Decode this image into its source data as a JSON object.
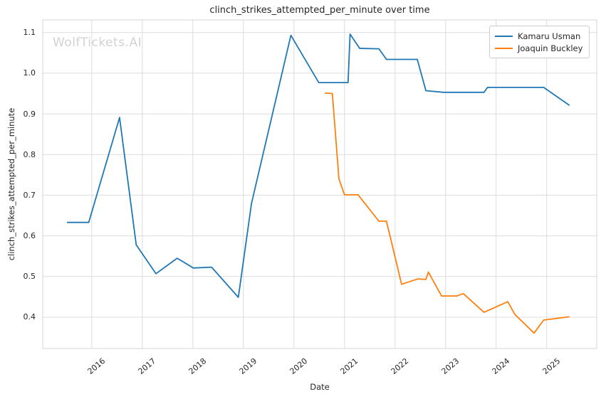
{
  "watermark": "WolfTickets.AI",
  "chart_data": {
    "type": "line",
    "title": "clinch_strikes_attempted_per_minute over time",
    "xlabel": "Date",
    "ylabel": "clinch_strikes_attempted_per_minute",
    "xlim": [
      2015.03,
      2025.99
    ],
    "ylim": [
      0.323,
      1.131
    ],
    "xticks": [
      2016,
      2017,
      2018,
      2019,
      2020,
      2021,
      2022,
      2023,
      2024,
      2025
    ],
    "yticks": [
      0.4,
      0.5,
      0.6,
      0.7,
      0.8,
      0.9,
      1.0,
      1.1
    ],
    "grid": true,
    "grid_color": "#dcdcdc",
    "border_color": "#d4d4d4",
    "legend_position": "upper right",
    "series": [
      {
        "name": "Kamaru Usman",
        "color": "#1f77b4",
        "points": [
          [
            2015.51,
            0.633
          ],
          [
            2015.94,
            0.633
          ],
          [
            2016.55,
            0.891
          ],
          [
            2016.88,
            0.578
          ],
          [
            2017.27,
            0.507
          ],
          [
            2017.69,
            0.545
          ],
          [
            2018.01,
            0.521
          ],
          [
            2018.37,
            0.523
          ],
          [
            2018.9,
            0.449
          ],
          [
            2019.16,
            0.68
          ],
          [
            2019.94,
            1.093
          ],
          [
            2020.49,
            0.977
          ],
          [
            2021.07,
            0.977
          ],
          [
            2021.11,
            1.096
          ],
          [
            2021.3,
            1.061
          ],
          [
            2021.68,
            1.06
          ],
          [
            2021.83,
            1.034
          ],
          [
            2022.44,
            1.034
          ],
          [
            2022.61,
            0.957
          ],
          [
            2022.96,
            0.953
          ],
          [
            2023.76,
            0.953
          ],
          [
            2023.83,
            0.965
          ],
          [
            2024.94,
            0.965
          ],
          [
            2025.45,
            0.921
          ]
        ]
      },
      {
        "name": "Joaquin Buckley",
        "color": "#ff7f0e",
        "points": [
          [
            2020.61,
            0.951
          ],
          [
            2020.76,
            0.95
          ],
          [
            2020.89,
            0.74
          ],
          [
            2021.0,
            0.701
          ],
          [
            2021.27,
            0.701
          ],
          [
            2021.68,
            0.636
          ],
          [
            2021.83,
            0.636
          ],
          [
            2022.13,
            0.481
          ],
          [
            2022.45,
            0.494
          ],
          [
            2022.61,
            0.493
          ],
          [
            2022.66,
            0.511
          ],
          [
            2022.92,
            0.452
          ],
          [
            2023.22,
            0.452
          ],
          [
            2023.35,
            0.458
          ],
          [
            2023.76,
            0.412
          ],
          [
            2024.23,
            0.438
          ],
          [
            2024.37,
            0.407
          ],
          [
            2024.75,
            0.361
          ],
          [
            2024.94,
            0.393
          ],
          [
            2025.45,
            0.401
          ]
        ]
      }
    ]
  }
}
